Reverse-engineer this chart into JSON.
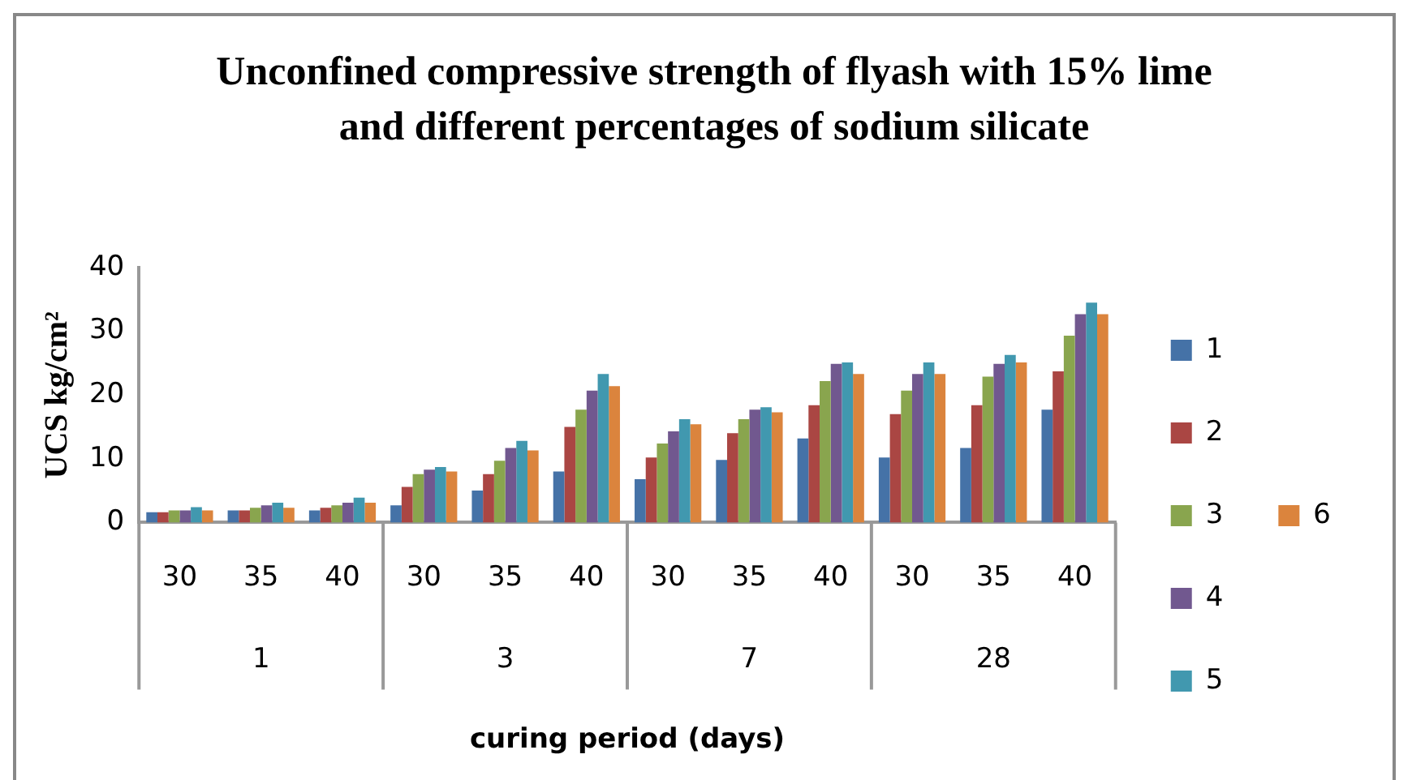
{
  "chart_data": {
    "type": "bar",
    "title": "Unconfined compressive strength of flyash with 15% lime and different percentages of sodium silicate",
    "xlabel": "curing period (days)",
    "ylabel": "UCS kg/cm²",
    "categories": [
      "30",
      "35",
      "40",
      "30",
      "35",
      "40",
      "30",
      "35",
      "40",
      "30",
      "35",
      "40"
    ],
    "annotations": [
      "1",
      "3",
      "7",
      "28"
    ],
    "ylim": [
      0,
      40
    ],
    "yticks": [
      0,
      10,
      20,
      30,
      40
    ],
    "grid": false,
    "legend": "right",
    "series": [
      {
        "name": "1",
        "color": "#4572a7",
        "values": [
          1.6,
          1.9,
          1.9,
          2.7,
          5.0,
          8.0,
          6.8,
          9.8,
          13.2,
          10.2,
          11.7,
          17.7
        ]
      },
      {
        "name": "2",
        "color": "#aa4643",
        "values": [
          1.6,
          1.9,
          2.3,
          5.6,
          7.6,
          15.0,
          10.2,
          14.0,
          18.4,
          17.0,
          18.4,
          23.7
        ]
      },
      {
        "name": "3",
        "color": "#89a54e",
        "values": [
          1.9,
          2.3,
          2.7,
          7.6,
          9.7,
          17.7,
          12.4,
          16.2,
          22.2,
          20.7,
          22.9,
          29.3
        ]
      },
      {
        "name": "4",
        "color": "#71588f",
        "values": [
          1.9,
          2.7,
          3.1,
          8.3,
          11.7,
          20.7,
          14.3,
          17.7,
          24.9,
          23.3,
          24.9,
          32.7
        ]
      },
      {
        "name": "5",
        "color": "#4198af",
        "values": [
          2.4,
          3.1,
          3.9,
          8.7,
          12.8,
          23.3,
          16.2,
          18.1,
          25.1,
          25.1,
          26.3,
          34.5
        ]
      },
      {
        "name": "6",
        "color": "#db843d",
        "values": [
          1.9,
          2.3,
          3.1,
          8.0,
          11.3,
          21.4,
          15.4,
          17.3,
          23.3,
          23.3,
          25.1,
          32.7
        ]
      }
    ]
  }
}
